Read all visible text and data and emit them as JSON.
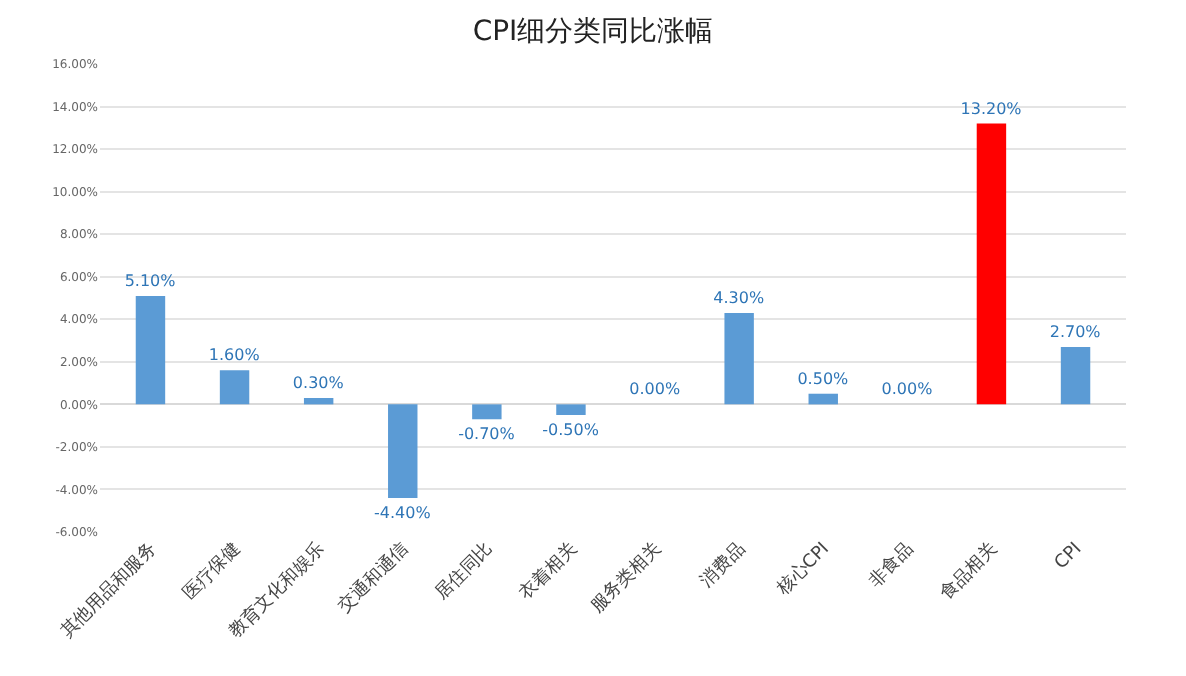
{
  "chart_data": {
    "type": "bar",
    "title": "CPI细分类同比涨幅",
    "categories": [
      "其他用品和服务",
      "医疗保健",
      "教育文化和娱乐",
      "交通和通信",
      "居住同比",
      "衣着相关",
      "服务类相关",
      "消费品",
      "核心CPI",
      "非食品",
      "食品相关",
      "CPI"
    ],
    "values": [
      5.1,
      1.6,
      0.3,
      -4.4,
      -0.7,
      -0.5,
      0,
      4.3,
      0.5,
      0,
      13.2,
      2.7
    ],
    "colors": [
      "#5b9bd5",
      "#5b9bd5",
      "#5b9bd5",
      "#5b9bd5",
      "#5b9bd5",
      "#5b9bd5",
      "#5b9bd5",
      "#5b9bd5",
      "#5b9bd5",
      "#5b9bd5",
      "#ff0000",
      "#5b9bd5"
    ],
    "value_labels": [
      "5.10%",
      "1.60%",
      "0.30%",
      "-4.40%",
      "-0.70%",
      "-0.50%",
      "0.00%",
      "4.30%",
      "0.50%",
      "0.00%",
      "13.20%",
      "2.70%"
    ],
    "ylim": [
      -6,
      16
    ],
    "yticks": [
      {
        "value": -6,
        "label": "-6.00%"
      },
      {
        "value": -4,
        "label": "-4.00%"
      },
      {
        "value": -2,
        "label": "-2.00%"
      },
      {
        "value": 0,
        "label": "0.00%"
      },
      {
        "value": 2,
        "label": "2.00%"
      },
      {
        "value": 4,
        "label": "4.00%"
      },
      {
        "value": 6,
        "label": "6.00%"
      },
      {
        "value": 8,
        "label": "8.00%"
      },
      {
        "value": 10,
        "label": "10.00%"
      },
      {
        "value": 12,
        "label": "12.00%"
      },
      {
        "value": 14,
        "label": "14.00%"
      },
      {
        "value": 16,
        "label": "16.00%"
      }
    ],
    "grid": "y"
  }
}
